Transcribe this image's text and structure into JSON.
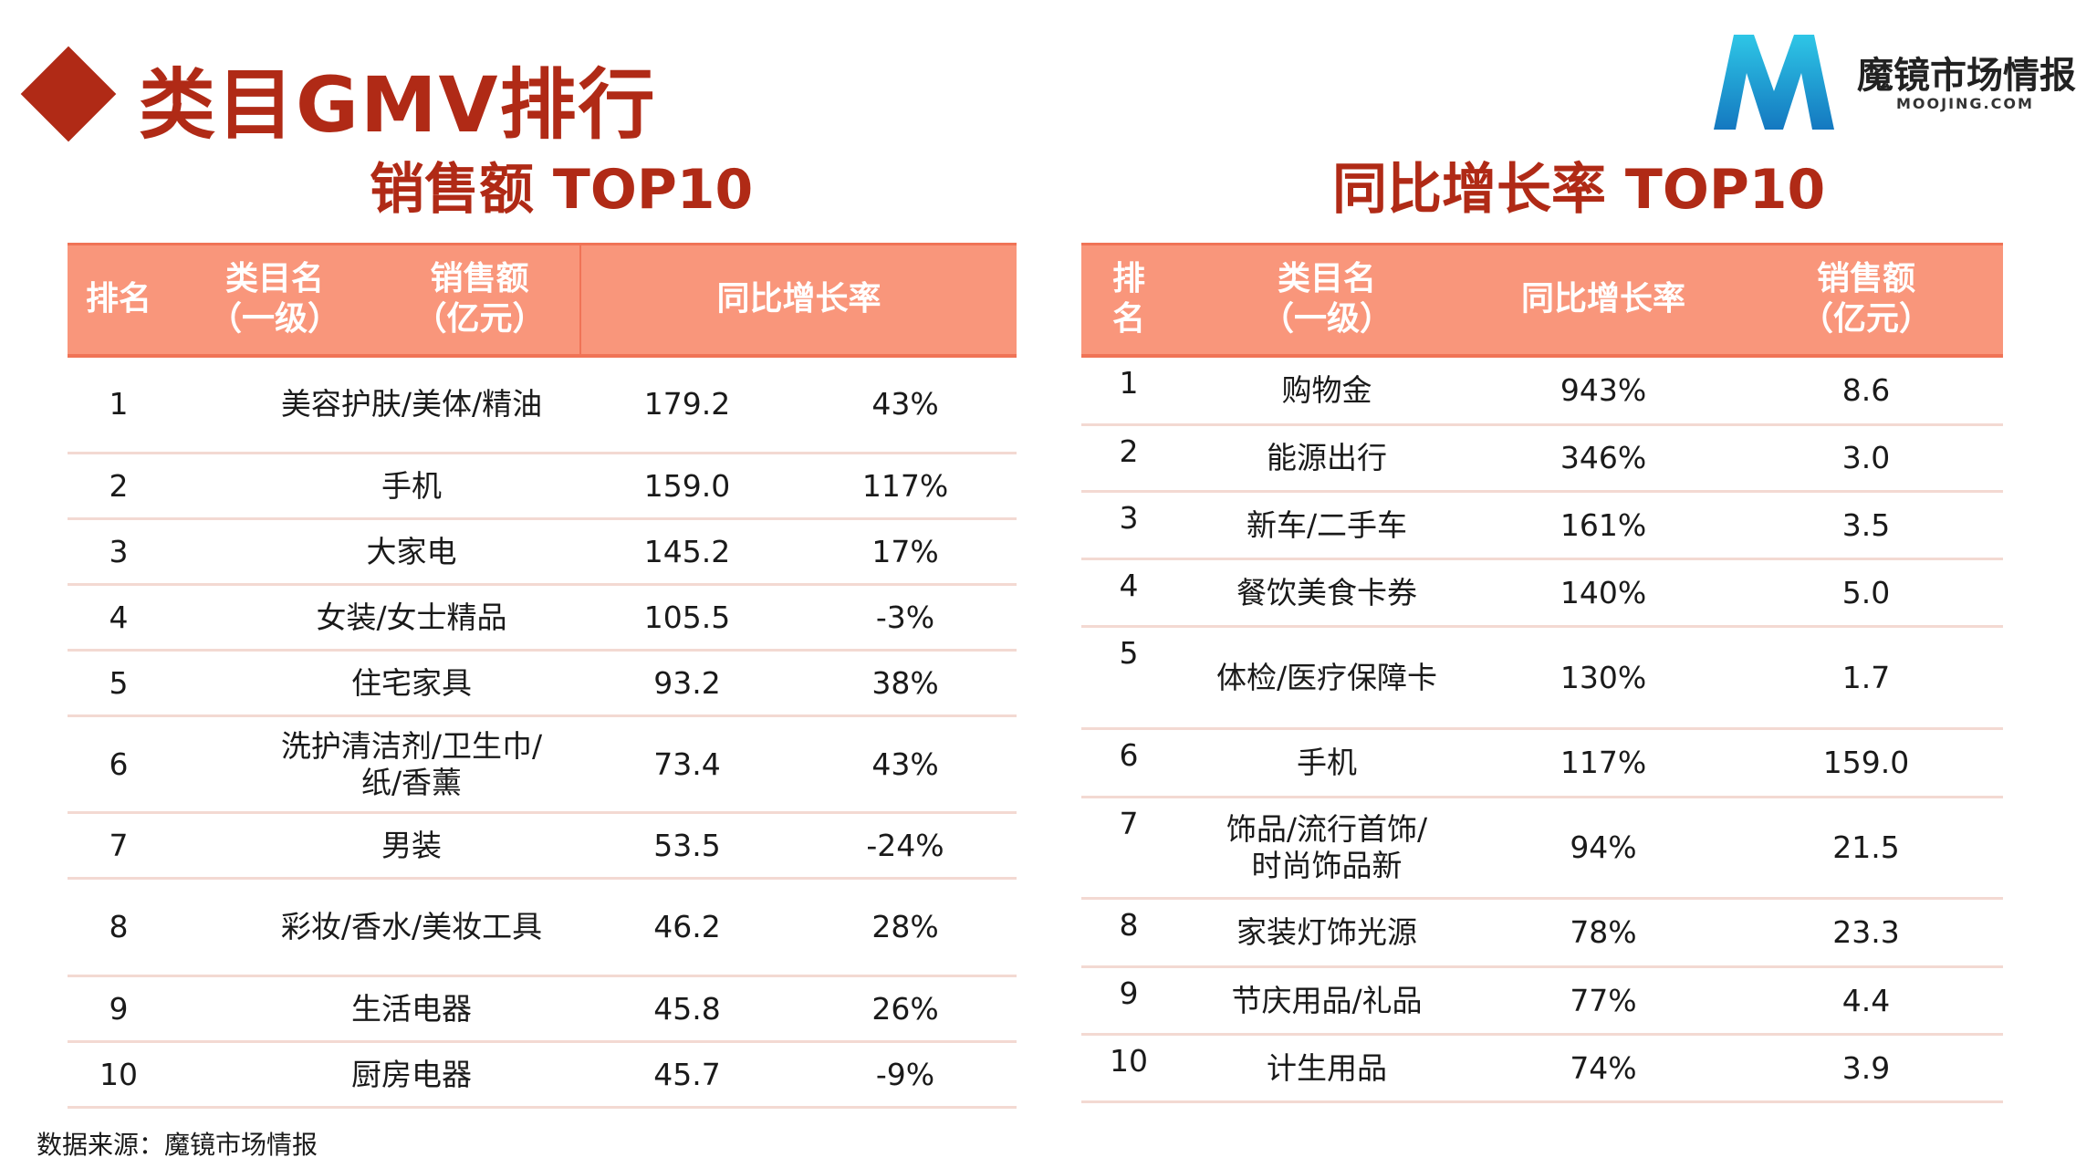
{
  "title": "类目GMV排行",
  "logo": {
    "name": "魔镜市场情报",
    "url": "MOOJING.COM"
  },
  "left_table": {
    "subtitle": "销售额 TOP10",
    "headers": {
      "rank": "排名",
      "category_l1": "类目名",
      "category_l2": "（一级）",
      "sales_l1": "销售额",
      "sales_l2": "（亿元）",
      "growth": "同比增长率"
    },
    "rows": [
      {
        "rank": "1",
        "category": "美容护肤/美体/精油",
        "sales": "179.2",
        "growth": "43%"
      },
      {
        "rank": "2",
        "category": "手机",
        "sales": "159.0",
        "growth": "117%"
      },
      {
        "rank": "3",
        "category": "大家电",
        "sales": "145.2",
        "growth": "17%"
      },
      {
        "rank": "4",
        "category": "女装/女士精品",
        "sales": "105.5",
        "growth": "-3%"
      },
      {
        "rank": "5",
        "category": "住宅家具",
        "sales": "93.2",
        "growth": "38%"
      },
      {
        "rank": "6",
        "category_l1": "洗护清洁剂/卫生巾/",
        "category_l2": "纸/香薰",
        "sales": "73.4",
        "growth": "43%"
      },
      {
        "rank": "7",
        "category": "男装",
        "sales": "53.5",
        "growth": "-24%"
      },
      {
        "rank": "8",
        "category": "彩妆/香水/美妆工具",
        "sales": "46.2",
        "growth": "28%"
      },
      {
        "rank": "9",
        "category": "生活电器",
        "sales": "45.8",
        "growth": "26%"
      },
      {
        "rank": "10",
        "category": "厨房电器",
        "sales": "45.7",
        "growth": "-9%"
      }
    ]
  },
  "right_table": {
    "subtitle": "同比增长率 TOP10",
    "headers": {
      "rank_l1": "排",
      "rank_l2": "名",
      "category_l1": "类目名",
      "category_l2": "（一级）",
      "growth": "同比增长率",
      "sales_l1": "销售额",
      "sales_l2": "（亿元）"
    },
    "rows": [
      {
        "rank": "1",
        "category": "购物金",
        "growth": "943%",
        "sales": "8.6"
      },
      {
        "rank": "2",
        "category": "能源出行",
        "growth": "346%",
        "sales": "3.0"
      },
      {
        "rank": "3",
        "category": "新车/二手车",
        "growth": "161%",
        "sales": "3.5"
      },
      {
        "rank": "4",
        "category": "餐饮美食卡券",
        "growth": "140%",
        "sales": "5.0"
      },
      {
        "rank": "5",
        "category": "体检/医疗保障卡",
        "growth": "130%",
        "sales": "1.7"
      },
      {
        "rank": "6",
        "category": "手机",
        "growth": "117%",
        "sales": "159.0"
      },
      {
        "rank": "7",
        "category_l1": "饰品/流行首饰/",
        "category_l2": "时尚饰品新",
        "growth": "94%",
        "sales": "21.5"
      },
      {
        "rank": "8",
        "category": "家装灯饰光源",
        "growth": "78%",
        "sales": "23.3"
      },
      {
        "rank": "9",
        "category": "节庆用品/礼品",
        "growth": "77%",
        "sales": "4.4"
      },
      {
        "rank": "10",
        "category": "计生用品",
        "growth": "74%",
        "sales": "3.9"
      }
    ]
  },
  "source": "数据来源：魔镜市场情报",
  "colors": {
    "accent": "#b02a16",
    "header_bg": "#f9967b",
    "row_line": "#f3d9d2"
  }
}
